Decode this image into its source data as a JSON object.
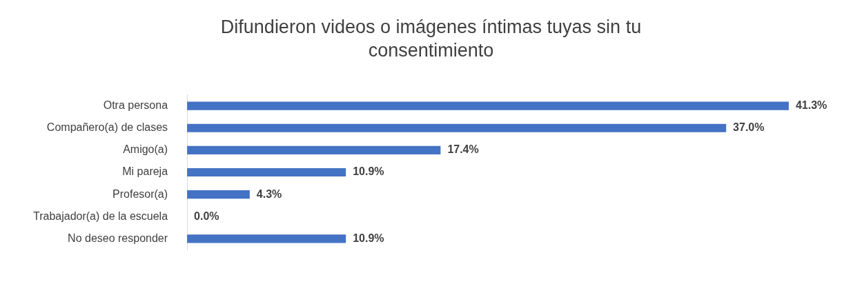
{
  "chart_data": {
    "type": "bar",
    "orientation": "horizontal",
    "title": "Difundieron videos o imágenes íntimas tuyas sin tu consentimiento",
    "categories": [
      "Otra persona",
      "Compañero(a) de clases",
      "Amigo(a)",
      "Mi pareja",
      "Profesor(a)",
      "Trabajador(a) de la escuela",
      "No deseo responder"
    ],
    "values": [
      41.3,
      37.0,
      17.4,
      10.9,
      4.3,
      0.0,
      10.9
    ],
    "value_labels": [
      "41.3%",
      "37.0%",
      "17.4%",
      "10.9%",
      "4.3%",
      "0.0%",
      "10.9%"
    ],
    "color": "#4472c4"
  }
}
